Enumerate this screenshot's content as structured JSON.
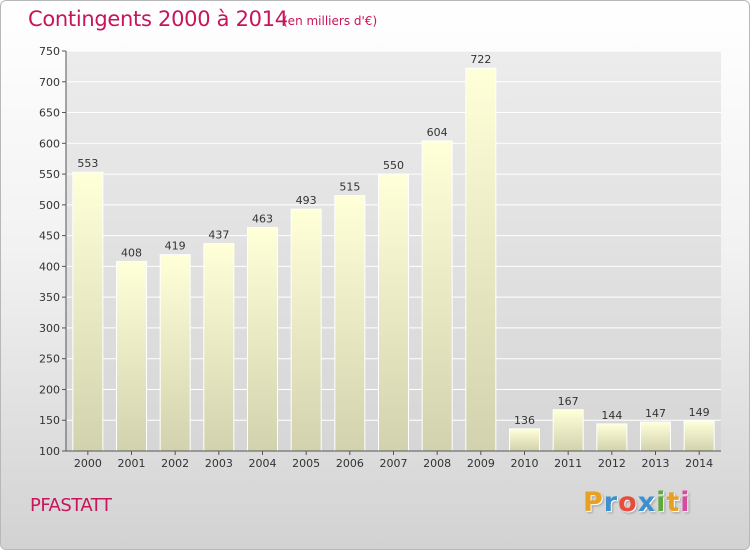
{
  "header": {
    "title": "Contingents 2000 à 2014",
    "subtitle": "(en milliers d'€)"
  },
  "footer": {
    "commune": "PFASTATT",
    "logo_text": "Proxiti",
    "logo_colors": [
      "#e8a020",
      "#3c8fd0",
      "#e84c3c",
      "#3c8fd0",
      "#5aaa3c",
      "#e8a020",
      "#d84ca0"
    ]
  },
  "colors": {
    "title": "#c8145a",
    "bar_top": "#ffffd8",
    "bar_bottom": "#d2d2ae",
    "grid": "#ffffff"
  },
  "chart_data": {
    "type": "bar",
    "title": "Contingents 2000 à 2014",
    "subtitle": "(en milliers d'€)",
    "xlabel": "",
    "ylabel": "",
    "categories": [
      "2000",
      "2001",
      "2002",
      "2003",
      "2004",
      "2005",
      "2006",
      "2007",
      "2008",
      "2009",
      "2010",
      "2011",
      "2012",
      "2013",
      "2014"
    ],
    "values": [
      553,
      408,
      419,
      437,
      463,
      493,
      515,
      550,
      604,
      722,
      136,
      167,
      144,
      147,
      149
    ],
    "ylim": [
      100,
      750
    ],
    "yticks": [
      100,
      150,
      200,
      250,
      300,
      350,
      400,
      450,
      500,
      550,
      600,
      650,
      700,
      750
    ],
    "grid": true,
    "data_labels": true
  }
}
